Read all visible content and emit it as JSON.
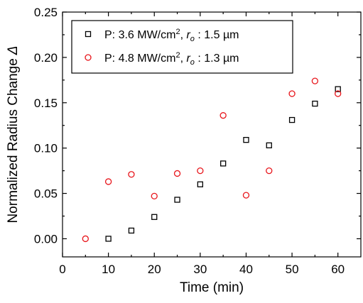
{
  "chart_data": {
    "type": "scatter",
    "xlabel": "Time (min)",
    "ylabel": "Normalized Radius Change",
    "ylabel_symbol": "Δ",
    "xlim": [
      0,
      65
    ],
    "ylim": [
      -0.02,
      0.25
    ],
    "xticks": [
      "0",
      "10",
      "20",
      "30",
      "40",
      "50",
      "60"
    ],
    "yticks": [
      "0.00",
      "0.05",
      "0.10",
      "0.15",
      "0.20",
      "0.25"
    ],
    "grid": false,
    "legend_position": "top-left",
    "series": [
      {
        "name": "P: 3.6 MW/cm², rₒ : 1.5 µm",
        "legend": {
          "p": "P: 3.6 MW/cm",
          "sup": "2",
          "mid": ", ",
          "r": "r",
          "sub": "o",
          "end": " : 1.5 µm"
        },
        "marker": "square",
        "color": "#000000",
        "x": [
          10,
          15,
          20,
          25,
          30,
          35,
          40,
          45,
          50,
          55,
          60
        ],
        "y": [
          0.0,
          0.009,
          0.024,
          0.043,
          0.06,
          0.083,
          0.109,
          0.103,
          0.131,
          0.149,
          0.165
        ]
      },
      {
        "name": "P: 4.8 MW/cm², rₒ : 1.3 µm",
        "legend": {
          "p": "P: 4.8 MW/cm",
          "sup": "2",
          "mid": ", ",
          "r": "r",
          "sub": "o",
          "end": " : 1.3 µm"
        },
        "marker": "circle",
        "color": "#e8151b",
        "x": [
          5,
          10,
          15,
          20,
          25,
          30,
          35,
          40,
          45,
          50,
          55,
          60
        ],
        "y": [
          0.0,
          0.063,
          0.071,
          0.047,
          0.072,
          0.075,
          0.136,
          0.048,
          0.075,
          0.16,
          0.174,
          0.16
        ]
      }
    ]
  }
}
